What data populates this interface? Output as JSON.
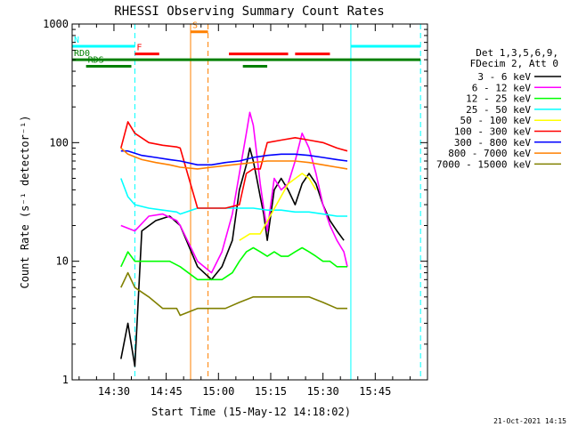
{
  "chart_data": {
    "type": "line",
    "title": "RHESSI Observing Summary Count Rates",
    "xlabel": "Start Time (15-May-12 14:18:02)",
    "ylabel": "Count Rate (s⁻¹ detector⁻¹)",
    "yscale": "log",
    "ylim": [
      1,
      1000
    ],
    "xlim": [
      "14:18",
      "16:00"
    ],
    "y_ticks": [
      {
        "value": 1,
        "label": "1"
      },
      {
        "value": 10,
        "label": "10"
      },
      {
        "value": 100,
        "label": "100"
      },
      {
        "value": 1000,
        "label": "1000"
      }
    ],
    "x_ticks": [
      {
        "value": "14:30",
        "label": "14:30"
      },
      {
        "value": "14:45",
        "label": "14:45"
      },
      {
        "value": "15:00",
        "label": "15:00"
      },
      {
        "value": "15:15",
        "label": "15:15"
      },
      {
        "value": "15:30",
        "label": "15:30"
      },
      {
        "value": "15:45",
        "label": "15:45"
      }
    ],
    "legend": {
      "placement": "outside-right",
      "header": [
        "Det 1,3,5,6,9,",
        "FDecim 2, Att 0"
      ]
    },
    "timestamp": "21-Oct-2021 14:15",
    "series": [
      {
        "name": "3 - 6 keV",
        "color": "#000000",
        "points": [
          [
            "14:32",
            1.5
          ],
          [
            "14:34",
            3
          ],
          [
            "14:36",
            1.3
          ],
          [
            "14:38",
            18
          ],
          [
            "14:42",
            22
          ],
          [
            "14:46",
            24
          ],
          [
            "14:49",
            20
          ],
          [
            "14:54",
            9
          ],
          [
            "14:58",
            7
          ],
          [
            "15:01",
            9
          ],
          [
            "15:04",
            15
          ],
          [
            "15:06",
            40
          ],
          [
            "15:08",
            65
          ],
          [
            "15:09",
            90
          ],
          [
            "15:10",
            70
          ],
          [
            "15:11",
            50
          ],
          [
            "15:12",
            35
          ],
          [
            "15:13",
            25
          ],
          [
            "15:14",
            15
          ],
          [
            "15:16",
            40
          ],
          [
            "15:18",
            50
          ],
          [
            "15:20",
            40
          ],
          [
            "15:22",
            30
          ],
          [
            "15:24",
            45
          ],
          [
            "15:26",
            55
          ],
          [
            "15:28",
            45
          ],
          [
            "15:30",
            30
          ],
          [
            "15:32",
            22
          ],
          [
            "15:34",
            18
          ],
          [
            "15:36",
            15
          ]
        ]
      },
      {
        "name": "6 - 12 keV",
        "color": "#ff00ff",
        "points": [
          [
            "14:32",
            20
          ],
          [
            "14:36",
            18
          ],
          [
            "14:40",
            24
          ],
          [
            "14:44",
            25
          ],
          [
            "14:48",
            22
          ],
          [
            "14:49",
            20
          ],
          [
            "14:54",
            10
          ],
          [
            "14:58",
            8
          ],
          [
            "15:01",
            12
          ],
          [
            "15:04",
            25
          ],
          [
            "15:06",
            55
          ],
          [
            "15:08",
            120
          ],
          [
            "15:09",
            180
          ],
          [
            "15:10",
            140
          ],
          [
            "15:11",
            80
          ],
          [
            "15:12",
            45
          ],
          [
            "15:13",
            28
          ],
          [
            "15:14",
            18
          ],
          [
            "15:16",
            50
          ],
          [
            "15:18",
            40
          ],
          [
            "15:20",
            45
          ],
          [
            "15:22",
            70
          ],
          [
            "15:24",
            120
          ],
          [
            "15:26",
            90
          ],
          [
            "15:28",
            55
          ],
          [
            "15:30",
            30
          ],
          [
            "15:32",
            20
          ],
          [
            "15:34",
            15
          ],
          [
            "15:36",
            12
          ],
          [
            "15:37",
            9
          ]
        ]
      },
      {
        "name": "12 - 25 keV",
        "color": "#00ff00",
        "points": [
          [
            "14:32",
            9
          ],
          [
            "14:34",
            12
          ],
          [
            "14:36",
            10
          ],
          [
            "14:42",
            10
          ],
          [
            "14:46",
            10
          ],
          [
            "14:49",
            9
          ],
          [
            "14:54",
            7
          ],
          [
            "14:58",
            7
          ],
          [
            "15:01",
            7
          ],
          [
            "15:04",
            8
          ],
          [
            "15:06",
            10
          ],
          [
            "15:08",
            12
          ],
          [
            "15:10",
            13
          ],
          [
            "15:12",
            12
          ],
          [
            "15:14",
            11
          ],
          [
            "15:16",
            12
          ],
          [
            "15:18",
            11
          ],
          [
            "15:20",
            11
          ],
          [
            "15:22",
            12
          ],
          [
            "15:24",
            13
          ],
          [
            "15:26",
            12
          ],
          [
            "15:28",
            11
          ],
          [
            "15:30",
            10
          ],
          [
            "15:32",
            10
          ],
          [
            "15:34",
            9
          ],
          [
            "15:36",
            9
          ],
          [
            "15:37",
            9
          ]
        ]
      },
      {
        "name": "25 - 50 keV",
        "color": "#00ffff",
        "points": [
          [
            "14:32",
            50
          ],
          [
            "14:34",
            35
          ],
          [
            "14:36",
            30
          ],
          [
            "14:40",
            28
          ],
          [
            "14:44",
            27
          ],
          [
            "14:48",
            26
          ],
          [
            "14:49",
            25
          ],
          [
            "14:54",
            28
          ],
          [
            "14:58",
            28
          ],
          [
            "15:02",
            28
          ],
          [
            "15:06",
            28
          ],
          [
            "15:10",
            28
          ],
          [
            "15:14",
            27
          ],
          [
            "15:18",
            27
          ],
          [
            "15:22",
            26
          ],
          [
            "15:26",
            26
          ],
          [
            "15:30",
            25
          ],
          [
            "15:34",
            24
          ],
          [
            "15:37",
            24
          ]
        ]
      },
      {
        "name": "50 - 100 keV",
        "color": "#ffff00",
        "points": [
          [
            "15:06",
            15
          ],
          [
            "15:09",
            17
          ],
          [
            "15:12",
            17
          ],
          [
            "15:20",
            45
          ],
          [
            "15:24",
            55
          ],
          [
            "15:26",
            50
          ],
          [
            "15:28",
            40
          ]
        ]
      },
      {
        "name": "100 - 300 keV",
        "color": "#ff0000",
        "points": [
          [
            "14:32",
            90
          ],
          [
            "14:34",
            150
          ],
          [
            "14:36",
            120
          ],
          [
            "14:40",
            100
          ],
          [
            "14:44",
            95
          ],
          [
            "14:48",
            92
          ],
          [
            "14:49",
            90
          ],
          [
            "14:54",
            28
          ],
          [
            "14:58",
            28
          ],
          [
            "15:02",
            28
          ],
          [
            "15:06",
            30
          ],
          [
            "15:08",
            55
          ],
          [
            "15:10",
            60
          ],
          [
            "15:12",
            60
          ],
          [
            "15:14",
            100
          ],
          [
            "15:18",
            105
          ],
          [
            "15:22",
            110
          ],
          [
            "15:26",
            105
          ],
          [
            "15:30",
            100
          ],
          [
            "15:34",
            90
          ],
          [
            "15:37",
            85
          ]
        ]
      },
      {
        "name": "300 - 800 keV",
        "color": "#0000ff",
        "points": [
          [
            "14:32",
            85
          ],
          [
            "14:34",
            85
          ],
          [
            "14:38",
            78
          ],
          [
            "14:42",
            75
          ],
          [
            "14:46",
            72
          ],
          [
            "14:49",
            70
          ],
          [
            "14:54",
            65
          ],
          [
            "14:58",
            65
          ],
          [
            "15:02",
            68
          ],
          [
            "15:06",
            70
          ],
          [
            "15:10",
            75
          ],
          [
            "15:14",
            78
          ],
          [
            "15:18",
            80
          ],
          [
            "15:22",
            80
          ],
          [
            "15:26",
            78
          ],
          [
            "15:30",
            75
          ],
          [
            "15:34",
            72
          ],
          [
            "15:37",
            70
          ]
        ]
      },
      {
        "name": "800 - 7000 keV",
        "color": "#ff8000",
        "points": [
          [
            "14:32",
            90
          ],
          [
            "14:34",
            80
          ],
          [
            "14:38",
            72
          ],
          [
            "14:42",
            68
          ],
          [
            "14:46",
            65
          ],
          [
            "14:49",
            62
          ],
          [
            "14:54",
            60
          ],
          [
            "14:58",
            62
          ],
          [
            "15:02",
            64
          ],
          [
            "15:06",
            66
          ],
          [
            "15:10",
            68
          ],
          [
            "15:14",
            70
          ],
          [
            "15:18",
            70
          ],
          [
            "15:22",
            70
          ],
          [
            "15:26",
            68
          ],
          [
            "15:30",
            65
          ],
          [
            "15:34",
            62
          ],
          [
            "15:37",
            60
          ]
        ]
      },
      {
        "name": "7000 - 15000 keV",
        "color": "#808000",
        "points": [
          [
            "14:32",
            6
          ],
          [
            "14:34",
            8
          ],
          [
            "14:36",
            6
          ],
          [
            "14:40",
            5
          ],
          [
            "14:44",
            4
          ],
          [
            "14:48",
            4
          ],
          [
            "14:49",
            3.5
          ],
          [
            "14:54",
            4
          ],
          [
            "14:58",
            4
          ],
          [
            "15:02",
            4
          ],
          [
            "15:06",
            4.5
          ],
          [
            "15:10",
            5
          ],
          [
            "15:14",
            5
          ],
          [
            "15:18",
            5
          ],
          [
            "15:22",
            5
          ],
          [
            "15:26",
            5
          ],
          [
            "15:30",
            4.5
          ],
          [
            "15:34",
            4
          ],
          [
            "15:37",
            4
          ]
        ]
      }
    ],
    "state_bars": [
      {
        "label": "N",
        "color": "#00ffff",
        "value": 650,
        "segments": [
          [
            "14:18",
            "14:36"
          ],
          [
            "15:38",
            "15:58"
          ]
        ]
      },
      {
        "label": "F",
        "color": "#ff0000",
        "value": 560,
        "segments": [
          [
            "14:36",
            "14:43"
          ],
          [
            "15:03",
            "15:20"
          ],
          [
            "15:22",
            "15:32"
          ]
        ]
      },
      {
        "label": "S",
        "color": "#ff8000",
        "value": 860,
        "segments": [
          [
            "14:52",
            "14:57"
          ]
        ]
      },
      {
        "label": "RD0",
        "color": "#008000",
        "value": 500,
        "segments": [
          [
            "14:18",
            "15:58"
          ]
        ]
      },
      {
        "label": "RDS",
        "color": "#008000",
        "value": 440,
        "segments": [
          [
            "14:22",
            "14:35"
          ],
          [
            "15:07",
            "15:14"
          ]
        ]
      }
    ],
    "vertical_markers": [
      {
        "x": "14:18",
        "color": "#00ffff",
        "style": "solid"
      },
      {
        "x": "14:36",
        "color": "#00ffff",
        "style": "dashed"
      },
      {
        "x": "14:52",
        "color": "#ff8000",
        "style": "solid"
      },
      {
        "x": "14:57",
        "color": "#ff8000",
        "style": "dashed"
      },
      {
        "x": "15:38",
        "color": "#00ffff",
        "style": "solid"
      },
      {
        "x": "15:58",
        "color": "#00ffff",
        "style": "dashed"
      }
    ]
  }
}
